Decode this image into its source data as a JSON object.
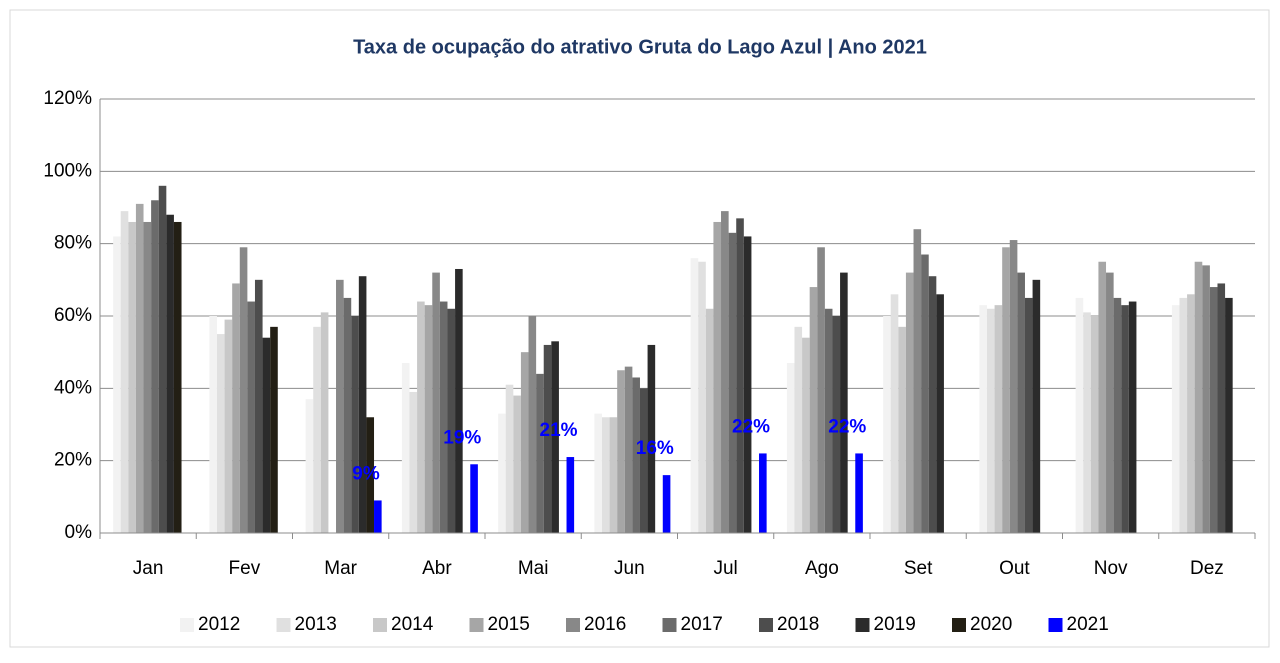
{
  "chart_data": {
    "type": "bar",
    "title": "Taxa de ocupação do atrativo Gruta do Lago Azul | Ano 2021",
    "categories": [
      "Jan",
      "Fev",
      "Mar",
      "Abr",
      "Mai",
      "Jun",
      "Jul",
      "Ago",
      "Set",
      "Out",
      "Nov",
      "Dez"
    ],
    "series": [
      {
        "name": "2012",
        "color": "#f2f2f2",
        "values": [
          82,
          60,
          37,
          47,
          33,
          33,
          76,
          47,
          60,
          63,
          65,
          63
        ]
      },
      {
        "name": "2013",
        "color": "#e0e0e0",
        "values": [
          89,
          55,
          57,
          39,
          41,
          32,
          75,
          57,
          66,
          62,
          61,
          65
        ]
      },
      {
        "name": "2014",
        "color": "#c8c8c8",
        "values": [
          86,
          59,
          61,
          64,
          38,
          32,
          62,
          54,
          57,
          63,
          60,
          66
        ]
      },
      {
        "name": "2015",
        "color": "#a6a6a6",
        "values": [
          91,
          69,
          null,
          63,
          50,
          45,
          86,
          68,
          72,
          79,
          75,
          75
        ]
      },
      {
        "name": "2016",
        "color": "#888888",
        "values": [
          86,
          79,
          70,
          72,
          60,
          46,
          89,
          79,
          84,
          81,
          72,
          74
        ]
      },
      {
        "name": "2017",
        "color": "#6b6b6b",
        "values": [
          92,
          64,
          65,
          64,
          44,
          43,
          83,
          62,
          77,
          72,
          65,
          68
        ]
      },
      {
        "name": "2018",
        "color": "#4d4d4d",
        "values": [
          96,
          70,
          60,
          62,
          52,
          40,
          87,
          60,
          71,
          65,
          63,
          69
        ]
      },
      {
        "name": "2019",
        "color": "#2b2b2b",
        "values": [
          88,
          54,
          71,
          73,
          53,
          52,
          82,
          72,
          66,
          70,
          64,
          65
        ]
      },
      {
        "name": "2020",
        "color": "#231f14",
        "values": [
          86,
          57,
          32,
          null,
          null,
          null,
          null,
          null,
          null,
          null,
          null,
          null
        ]
      },
      {
        "name": "2021",
        "color": "#0000ff",
        "values": [
          null,
          null,
          9,
          19,
          21,
          16,
          22,
          22,
          null,
          null,
          null,
          null
        ],
        "value_labels": [
          null,
          null,
          "9%",
          "19%",
          "21%",
          "16%",
          "22%",
          "22%",
          null,
          null,
          null,
          null
        ]
      }
    ],
    "ylim": [
      0,
      120
    ],
    "yticks": [
      {
        "value": 0,
        "label": "0%"
      },
      {
        "value": 20,
        "label": "20%"
      },
      {
        "value": 40,
        "label": "40%"
      },
      {
        "value": 60,
        "label": "60%"
      },
      {
        "value": 80,
        "label": "80%"
      },
      {
        "value": 100,
        "label": "100%"
      },
      {
        "value": 120,
        "label": "120%"
      }
    ],
    "grid": true,
    "legend": "bottom"
  }
}
